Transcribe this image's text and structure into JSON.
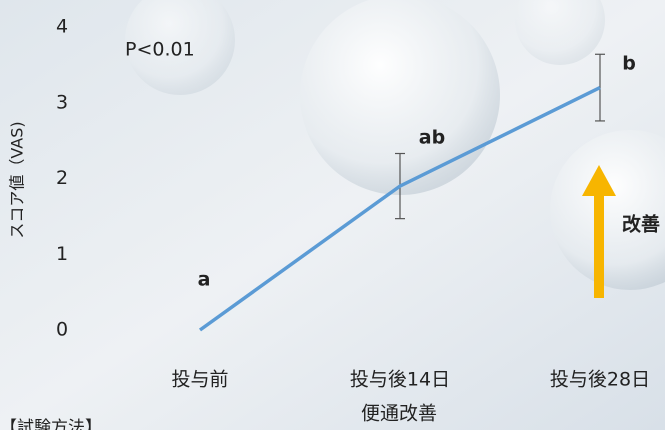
{
  "chart_data": {
    "type": "line",
    "y_label": "スコア値（VAS)",
    "x_label": "便通改善",
    "categories": [
      "投与前",
      "投与後14日",
      "投与後28日"
    ],
    "values": [
      0,
      1.9,
      3.2
    ],
    "errors": [
      null,
      0.43,
      0.44
    ],
    "color": "#5b9bd5",
    "ylim": [
      0,
      4
    ],
    "yticks": [
      0,
      1,
      2,
      3,
      4
    ],
    "grid": false,
    "annotations": [
      "P<0.01",
      "a",
      "ab",
      "b",
      "改善",
      "【試験方法】"
    ],
    "arrow_color": "#f7b500"
  }
}
